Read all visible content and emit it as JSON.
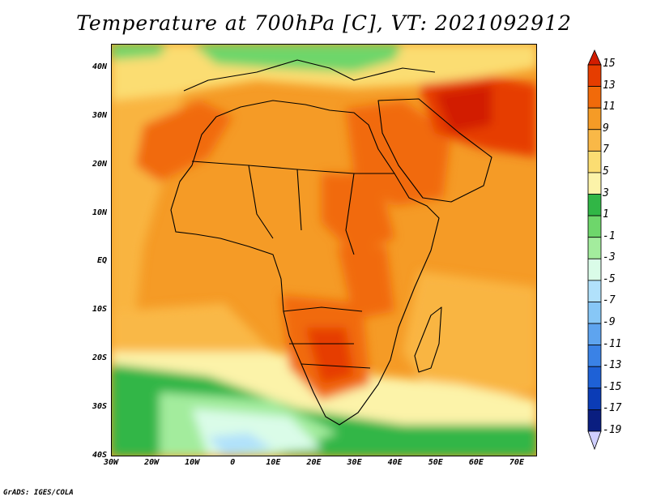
{
  "title": "Temperature at 700hPa [C], VT: 2021092912",
  "credit": "GrADS: IGES/COLA",
  "map": {
    "lon_range": [
      -30,
      75
    ],
    "lat_range": [
      -40,
      45
    ],
    "lat_labels": [
      "40N",
      "30N",
      "20N",
      "10N",
      "EQ",
      "10S",
      "20S",
      "30S",
      "40S"
    ],
    "lat_values": [
      40,
      30,
      20,
      10,
      0,
      -10,
      -20,
      -30,
      -40
    ],
    "lon_labels": [
      "30W",
      "20W",
      "10W",
      "0",
      "10E",
      "20E",
      "30E",
      "40E",
      "50E",
      "60E",
      "70E"
    ],
    "lon_values": [
      -30,
      -20,
      -10,
      0,
      10,
      20,
      30,
      40,
      50,
      60,
      70
    ]
  },
  "colorbar": {
    "labels": [
      "15",
      "13",
      "11",
      "9",
      "7",
      "5",
      "3",
      "1",
      "-1",
      "-3",
      "-5",
      "-7",
      "-9",
      "-11",
      "-13",
      "-15",
      "-17",
      "-19"
    ],
    "colors": [
      "#d21c00",
      "#e63d00",
      "#f16a0a",
      "#f59b26",
      "#f9b847",
      "#fbdd72",
      "#fcf3a9",
      "#31b646",
      "#6ed66b",
      "#a3ec9d",
      "#dafce8",
      "#b1e1fb",
      "#87c7f6",
      "#5ea4ef",
      "#3a82e6",
      "#1e61d6",
      "#0b3cb6",
      "#0a1e80",
      "#cfcfff"
    ]
  }
}
